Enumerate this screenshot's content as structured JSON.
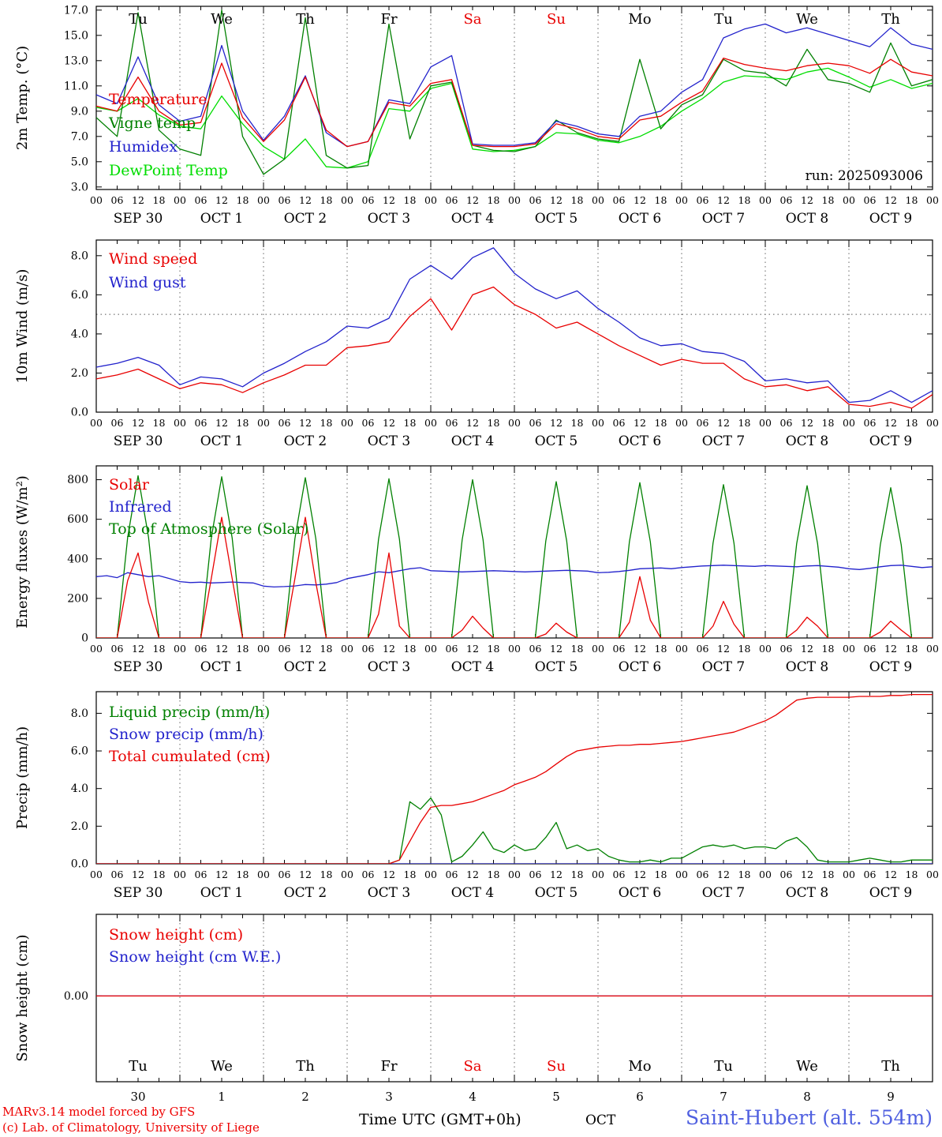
{
  "colors": {
    "red": "#e80000",
    "blue": "#2222cc",
    "dark_green": "#008000",
    "light_green": "#00dd00",
    "axis_black": "#000000",
    "station_blue": "#5060e0"
  },
  "day_names": [
    "Tu",
    "We",
    "Th",
    "Fr",
    "Sa",
    "Su",
    "Mo",
    "Tu",
    "We",
    "Th"
  ],
  "red_day_indices": [
    4,
    5
  ],
  "date_labels": [
    "SEP 30",
    "OCT 1",
    "OCT 2",
    "OCT 3",
    "OCT 4",
    "OCT 5",
    "OCT 6",
    "OCT 7",
    "OCT 8",
    "OCT 9"
  ],
  "bottom_numbers": [
    "30",
    "1",
    "2",
    "3",
    "4",
    "5",
    "6",
    "7",
    "8",
    "9"
  ],
  "hour_labels": [
    "00",
    "06",
    "12",
    "18"
  ],
  "run_label": "run: 2025093006",
  "footer": {
    "credit1": "MARv3.14 model forced by GFS",
    "credit2": "(c) Lab. of Climatology, University of Liege",
    "time_label": "Time UTC (GMT+0h)",
    "month_label": "OCT",
    "station_label": "Saint-Hubert (alt. 554m)"
  },
  "chart_data": [
    {
      "type": "line",
      "title": "2m temperature meteogram",
      "ylabel": "2m Temp. (°C)",
      "ylim": [
        2.8,
        17.3
      ],
      "yticks": [
        3.0,
        5.0,
        7.0,
        9.0,
        11.0,
        13.0,
        15.0,
        17.0
      ],
      "ytick_labels": [
        "3.0",
        "5.0",
        "7.0",
        "9.0",
        "11.0",
        "13.0",
        "15.0",
        "17.0"
      ],
      "xlim": [
        0,
        240
      ],
      "grid": "vertical-dashed-daily",
      "legend_position": "mid-left-inside",
      "series": [
        {
          "name": "Temperature",
          "color": "#e80000",
          "z": 4,
          "x_start": 0,
          "x_step": 6,
          "values": [
            9.4,
            9.0,
            11.7,
            9.0,
            7.9,
            8.1,
            12.8,
            8.5,
            6.6,
            8.3,
            11.7,
            7.5,
            6.2,
            6.6,
            9.7,
            9.4,
            11.2,
            11.5,
            6.3,
            6.2,
            6.2,
            6.4,
            8.0,
            7.6,
            7.0,
            6.8,
            8.3,
            8.6,
            9.7,
            10.6,
            13.2,
            12.7,
            12.4,
            12.2,
            12.6,
            12.8,
            12.6,
            12.0,
            13.1,
            12.1,
            11.8
          ]
        },
        {
          "name": "Vigne temp",
          "color": "#008000",
          "z": 2,
          "x_start": 0,
          "x_step": 6,
          "values": [
            8.5,
            7.0,
            16.8,
            7.5,
            6.0,
            5.5,
            17.0,
            7.0,
            4.0,
            5.2,
            16.4,
            5.5,
            4.5,
            4.7,
            15.9,
            6.8,
            11.0,
            11.3,
            6.3,
            5.9,
            5.8,
            6.2,
            8.3,
            7.3,
            6.8,
            6.6,
            13.1,
            7.6,
            9.5,
            10.3,
            13.1,
            12.2,
            12.0,
            11.0,
            13.9,
            11.5,
            11.2,
            10.5,
            14.4,
            11.0,
            11.5
          ]
        },
        {
          "name": "Humidex",
          "color": "#2222cc",
          "z": 3,
          "x_start": 0,
          "x_step": 6,
          "values": [
            10.3,
            9.6,
            13.3,
            9.5,
            8.2,
            8.6,
            14.2,
            9.0,
            6.7,
            8.6,
            11.8,
            7.3,
            6.2,
            6.6,
            9.9,
            9.6,
            12.5,
            13.4,
            6.4,
            6.3,
            6.3,
            6.5,
            8.2,
            7.8,
            7.2,
            7.0,
            8.6,
            9.0,
            10.5,
            11.5,
            14.8,
            15.5,
            15.9,
            15.2,
            15.6,
            15.1,
            14.6,
            14.1,
            15.6,
            14.3,
            13.9
          ]
        },
        {
          "name": "DewPoint Temp",
          "color": "#00dd00",
          "z": 1,
          "x_start": 0,
          "x_step": 6,
          "values": [
            9.3,
            9.0,
            10.0,
            8.7,
            7.8,
            7.6,
            10.2,
            8.0,
            6.2,
            5.2,
            6.8,
            4.6,
            4.5,
            5.0,
            9.2,
            9.0,
            10.8,
            11.2,
            6.0,
            5.8,
            5.9,
            6.2,
            7.3,
            7.2,
            6.7,
            6.5,
            7.0,
            7.8,
            9.0,
            10.0,
            11.3,
            11.8,
            11.7,
            11.5,
            12.1,
            12.4,
            11.7,
            10.9,
            11.5,
            10.8,
            11.2
          ]
        }
      ]
    },
    {
      "type": "line",
      "title": "10m wind meteogram",
      "ylabel": "10m Wind (m/s)",
      "ylim": [
        0,
        8.8
      ],
      "yticks": [
        0.0,
        2.0,
        4.0,
        6.0,
        8.0
      ],
      "ytick_labels": [
        "0.0",
        "2.0",
        "4.0",
        "6.0",
        "8.0"
      ],
      "xlim": [
        0,
        240
      ],
      "hline": 5.0,
      "grid": "vertical-dashed-daily",
      "legend_position": "top-left-inside",
      "series": [
        {
          "name": "Wind speed",
          "color": "#e80000",
          "z": 2,
          "x_start": 0,
          "x_step": 6,
          "values": [
            1.7,
            1.9,
            2.2,
            1.7,
            1.2,
            1.5,
            1.4,
            1.0,
            1.5,
            1.9,
            2.4,
            2.4,
            3.3,
            3.4,
            3.6,
            4.9,
            5.8,
            4.2,
            6.0,
            6.4,
            5.5,
            5.0,
            4.3,
            4.6,
            4.0,
            3.4,
            2.9,
            2.4,
            2.7,
            2.5,
            2.5,
            1.7,
            1.3,
            1.4,
            1.1,
            1.3,
            0.4,
            0.3,
            0.5,
            0.2,
            0.9
          ]
        },
        {
          "name": "Wind gust",
          "color": "#2222cc",
          "z": 1,
          "x_start": 0,
          "x_step": 6,
          "values": [
            2.3,
            2.5,
            2.8,
            2.4,
            1.4,
            1.8,
            1.7,
            1.3,
            2.0,
            2.5,
            3.1,
            3.6,
            4.4,
            4.3,
            4.8,
            6.8,
            7.5,
            6.8,
            7.9,
            8.4,
            7.1,
            6.3,
            5.8,
            6.2,
            5.3,
            4.6,
            3.8,
            3.4,
            3.5,
            3.1,
            3.0,
            2.6,
            1.6,
            1.7,
            1.5,
            1.6,
            0.5,
            0.6,
            1.1,
            0.5,
            1.1
          ]
        }
      ]
    },
    {
      "type": "line",
      "title": "Energy fluxes meteogram",
      "ylabel": "Energy fluxes (W/m²)",
      "ylim": [
        0,
        870
      ],
      "yticks": [
        0,
        200,
        400,
        600,
        800
      ],
      "ytick_labels": [
        "0",
        "200",
        "400",
        "600",
        "800"
      ],
      "xlim": [
        0,
        240
      ],
      "grid": "vertical-dashed-daily",
      "legend_position": "top-left-inside",
      "series": [
        {
          "name": "Solar",
          "color": "#e80000",
          "z": 3,
          "x_start": 0,
          "x_step": 3,
          "values": [
            0,
            0,
            0,
            290,
            430,
            180,
            0,
            0,
            0,
            0,
            0,
            300,
            610,
            300,
            0,
            0,
            0,
            0,
            0,
            300,
            610,
            280,
            0,
            0,
            0,
            0,
            0,
            120,
            430,
            60,
            0,
            0,
            0,
            0,
            0,
            40,
            110,
            50,
            0,
            0,
            0,
            0,
            0,
            20,
            75,
            30,
            0,
            0,
            0,
            0,
            0,
            80,
            310,
            90,
            0,
            0,
            0,
            0,
            0,
            60,
            185,
            70,
            0,
            0,
            0,
            0,
            0,
            40,
            105,
            60,
            0,
            0,
            0,
            0,
            0,
            30,
            85,
            40,
            0,
            0,
            0
          ]
        },
        {
          "name": "Infrared",
          "color": "#2222cc",
          "z": 2,
          "x_start": 0,
          "x_step": 3,
          "values": [
            310,
            315,
            305,
            330,
            320,
            310,
            315,
            300,
            285,
            280,
            282,
            278,
            280,
            283,
            280,
            278,
            262,
            258,
            260,
            263,
            270,
            268,
            272,
            280,
            300,
            310,
            320,
            335,
            330,
            340,
            350,
            355,
            340,
            338,
            336,
            334,
            336,
            338,
            340,
            338,
            336,
            334,
            336,
            338,
            340,
            342,
            340,
            338,
            330,
            332,
            336,
            342,
            350,
            352,
            354,
            350,
            356,
            360,
            364,
            366,
            368,
            366,
            364,
            362,
            366,
            364,
            362,
            360,
            364,
            366,
            362,
            358,
            350,
            346,
            352,
            360,
            366,
            368,
            362,
            356,
            360
          ]
        },
        {
          "name": "Top of Atmosphere (Solar)",
          "color": "#008000",
          "z": 1,
          "x_start": 0,
          "x_step": 3,
          "values": [
            0,
            0,
            0,
            508,
            820,
            508,
            0,
            0,
            0,
            0,
            0,
            505,
            815,
            505,
            0,
            0,
            0,
            0,
            0,
            502,
            810,
            502,
            0,
            0,
            0,
            0,
            0,
            499,
            805,
            499,
            0,
            0,
            0,
            0,
            0,
            496,
            800,
            496,
            0,
            0,
            0,
            0,
            0,
            490,
            790,
            490,
            0,
            0,
            0,
            0,
            0,
            487,
            785,
            487,
            0,
            0,
            0,
            0,
            0,
            480,
            775,
            480,
            0,
            0,
            0,
            0,
            0,
            477,
            770,
            477,
            0,
            0,
            0,
            0,
            0,
            471,
            760,
            471,
            0,
            0,
            0
          ]
        }
      ]
    },
    {
      "type": "line",
      "title": "Precipitation meteogram",
      "ylabel": "Precip (mm/h)",
      "ylim": [
        0,
        9.15
      ],
      "yticks": [
        0.0,
        2.0,
        4.0,
        6.0,
        8.0
      ],
      "ytick_labels": [
        "0.0",
        "2.0",
        "4.0",
        "6.0",
        "8.0"
      ],
      "xlim": [
        0,
        240
      ],
      "grid": "vertical-dashed-daily",
      "legend_position": "top-left-inside",
      "series": [
        {
          "name": "Liquid precip (mm/h)",
          "color": "#008000",
          "z": 1,
          "x_start": 0,
          "x_step": 3,
          "values": [
            0,
            0,
            0,
            0,
            0,
            0,
            0,
            0,
            0,
            0,
            0,
            0,
            0,
            0,
            0,
            0,
            0,
            0,
            0,
            0,
            0,
            0,
            0,
            0,
            0,
            0,
            0,
            0,
            0,
            0.2,
            3.3,
            2.9,
            3.5,
            2.6,
            0.1,
            0.4,
            1.0,
            1.7,
            0.8,
            0.6,
            1.0,
            0.7,
            0.8,
            1.4,
            2.2,
            0.8,
            1.0,
            0.7,
            0.8,
            0.4,
            0.2,
            0.1,
            0.1,
            0.2,
            0.1,
            0.3,
            0.3,
            0.6,
            0.9,
            1.0,
            0.9,
            1.0,
            0.8,
            0.9,
            0.9,
            0.8,
            1.2,
            1.4,
            0.9,
            0.2,
            0.1,
            0.1,
            0.1,
            0.2,
            0.3,
            0.2,
            0.1,
            0.1,
            0.2,
            0.2,
            0.2
          ]
        },
        {
          "name": "Snow precip (mm/h)",
          "color": "#2222cc",
          "z": 2,
          "x_start": 0,
          "x_step": 3,
          "values": [
            0,
            0,
            0,
            0,
            0,
            0,
            0,
            0,
            0,
            0,
            0,
            0,
            0,
            0,
            0,
            0,
            0,
            0,
            0,
            0,
            0,
            0,
            0,
            0,
            0,
            0,
            0,
            0,
            0,
            0,
            0,
            0,
            0,
            0,
            0,
            0,
            0,
            0,
            0,
            0,
            0,
            0,
            0,
            0,
            0,
            0,
            0,
            0,
            0,
            0,
            0,
            0,
            0,
            0,
            0,
            0,
            0,
            0,
            0,
            0,
            0,
            0,
            0,
            0,
            0,
            0,
            0,
            0,
            0,
            0,
            0,
            0,
            0,
            0,
            0,
            0,
            0,
            0,
            0,
            0,
            0
          ]
        },
        {
          "name": "Total cumulated (cm)",
          "color": "#e80000",
          "z": 3,
          "x_start": 0,
          "x_step": 3,
          "values": [
            0,
            0,
            0,
            0,
            0,
            0,
            0,
            0,
            0,
            0,
            0,
            0,
            0,
            0,
            0,
            0,
            0,
            0,
            0,
            0,
            0,
            0,
            0,
            0,
            0,
            0,
            0,
            0,
            0,
            0.2,
            1.2,
            2.2,
            3.0,
            3.1,
            3.1,
            3.2,
            3.3,
            3.5,
            3.7,
            3.9,
            4.2,
            4.4,
            4.6,
            4.9,
            5.3,
            5.7,
            6.0,
            6.1,
            6.2,
            6.25,
            6.3,
            6.3,
            6.35,
            6.35,
            6.4,
            6.45,
            6.5,
            6.6,
            6.7,
            6.8,
            6.9,
            7.0,
            7.2,
            7.4,
            7.6,
            7.9,
            8.3,
            8.7,
            8.8,
            8.85,
            8.85,
            8.85,
            8.85,
            8.9,
            8.9,
            8.9,
            8.95,
            8.95,
            9.0,
            9.0,
            9.0
          ]
        }
      ]
    },
    {
      "type": "line",
      "title": "Snow height meteogram",
      "ylabel": "Snow height (cm)",
      "ylim": [
        -1.05,
        1.0
      ],
      "yticks": [
        0.0
      ],
      "ytick_labels": [
        "0.00"
      ],
      "xlim": [
        0,
        240
      ],
      "grid": "vertical-dashed-daily",
      "legend_position": "top-left-inside",
      "series": [
        {
          "name": "Snow height (cm)",
          "color": "#e80000",
          "z": 2,
          "x_start": 0,
          "x_step": 240,
          "values": [
            0,
            0
          ]
        },
        {
          "name": "Snow height (cm W.E.)",
          "color": "#2222cc",
          "z": 1,
          "x_start": 0,
          "x_step": 240,
          "values": [
            0,
            0
          ]
        }
      ]
    }
  ]
}
